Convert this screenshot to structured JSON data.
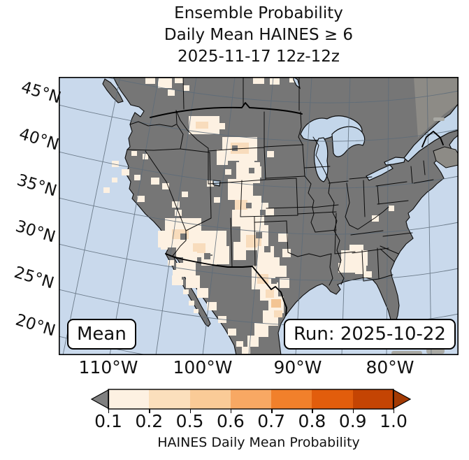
{
  "title": {
    "line1": "Ensemble Probability",
    "line2": "Daily Mean HAINES ≥ 6",
    "line3": "2025-11-17 12z-12z"
  },
  "map": {
    "lat_labels": [
      "45°N",
      "40°N",
      "35°N",
      "30°N",
      "25°N",
      "20°N"
    ],
    "lon_labels": [
      "110°W",
      "100°W",
      "90°W",
      "80°W"
    ],
    "mean_label": "Mean",
    "run_label": "Run: 2025-10-22",
    "colors": {
      "ocean": "#c9d9ec",
      "land": "#767676",
      "out_of_domain_land": "#8d8b86",
      "distant_island": "#a9a9a4",
      "lake": "#c3d6ea",
      "graticule": "#5c6b79",
      "state_border": "#000000"
    }
  },
  "colorbar": {
    "ticks": [
      "0.1",
      "0.2",
      "0.5",
      "0.6",
      "0.7",
      "0.8",
      "0.9",
      "1.0"
    ],
    "caption": "HAINES Daily Mean Probability",
    "segment_colors": [
      "#fdf1e2",
      "#fbdfbc",
      "#fac struct",
      "#f8a863",
      "#f1802b",
      "#e25d0c",
      "#c44403"
    ],
    "left_arrow_color": "#808080",
    "right_arrow_color": "#a33a03"
  },
  "chart_data": {
    "type": "heatmap",
    "title": "Ensemble Probability Daily Mean HAINES ≥ 6, 2025-11-17 12z-12z",
    "legend_label": "HAINES Daily Mean Probability",
    "colorbar_levels": [
      0.1,
      0.2,
      0.5,
      0.6,
      0.7,
      0.8,
      0.9,
      1.0
    ],
    "colorbar_colors": [
      "#fdf1e2",
      "#fbdfbc",
      "#fac austere",
      "#f8a863",
      "#f1802b",
      "#e25d0c",
      "#c44403"
    ],
    "under_color": "#808080",
    "over_color": "#a33a03",
    "x_ticks": [
      "110°W",
      "100°W",
      "90°W",
      "80°W"
    ],
    "y_ticks": [
      "45°N",
      "40°N",
      "35°N",
      "30°N",
      "25°N",
      "20°N"
    ],
    "high_probability_regions": [
      "Saskatchewan border area (0.1-0.2)",
      "Central Montana (0.1-0.5)",
      "Wyoming / Colorado Front Range into western Kansas (0.1-0.5)",
      "Eastern New Mexico / Texas Panhandle (0.1-0.5)",
      "West Texas and Rio Grande into northern Mexico (0.1-0.6)",
      "Arizona / New Mexico / Sonora (0.1-0.5)",
      "Baja California chain (0.1-0.2)",
      "Scattered California / Nevada / Oregon cells (0.1-0.2)",
      "South Georgia / north Florida patch (0.1-0.2)"
    ],
    "run_date": "2025-10-22",
    "valid": "2025-11-17 12z-12z",
    "statistic": "Mean"
  }
}
